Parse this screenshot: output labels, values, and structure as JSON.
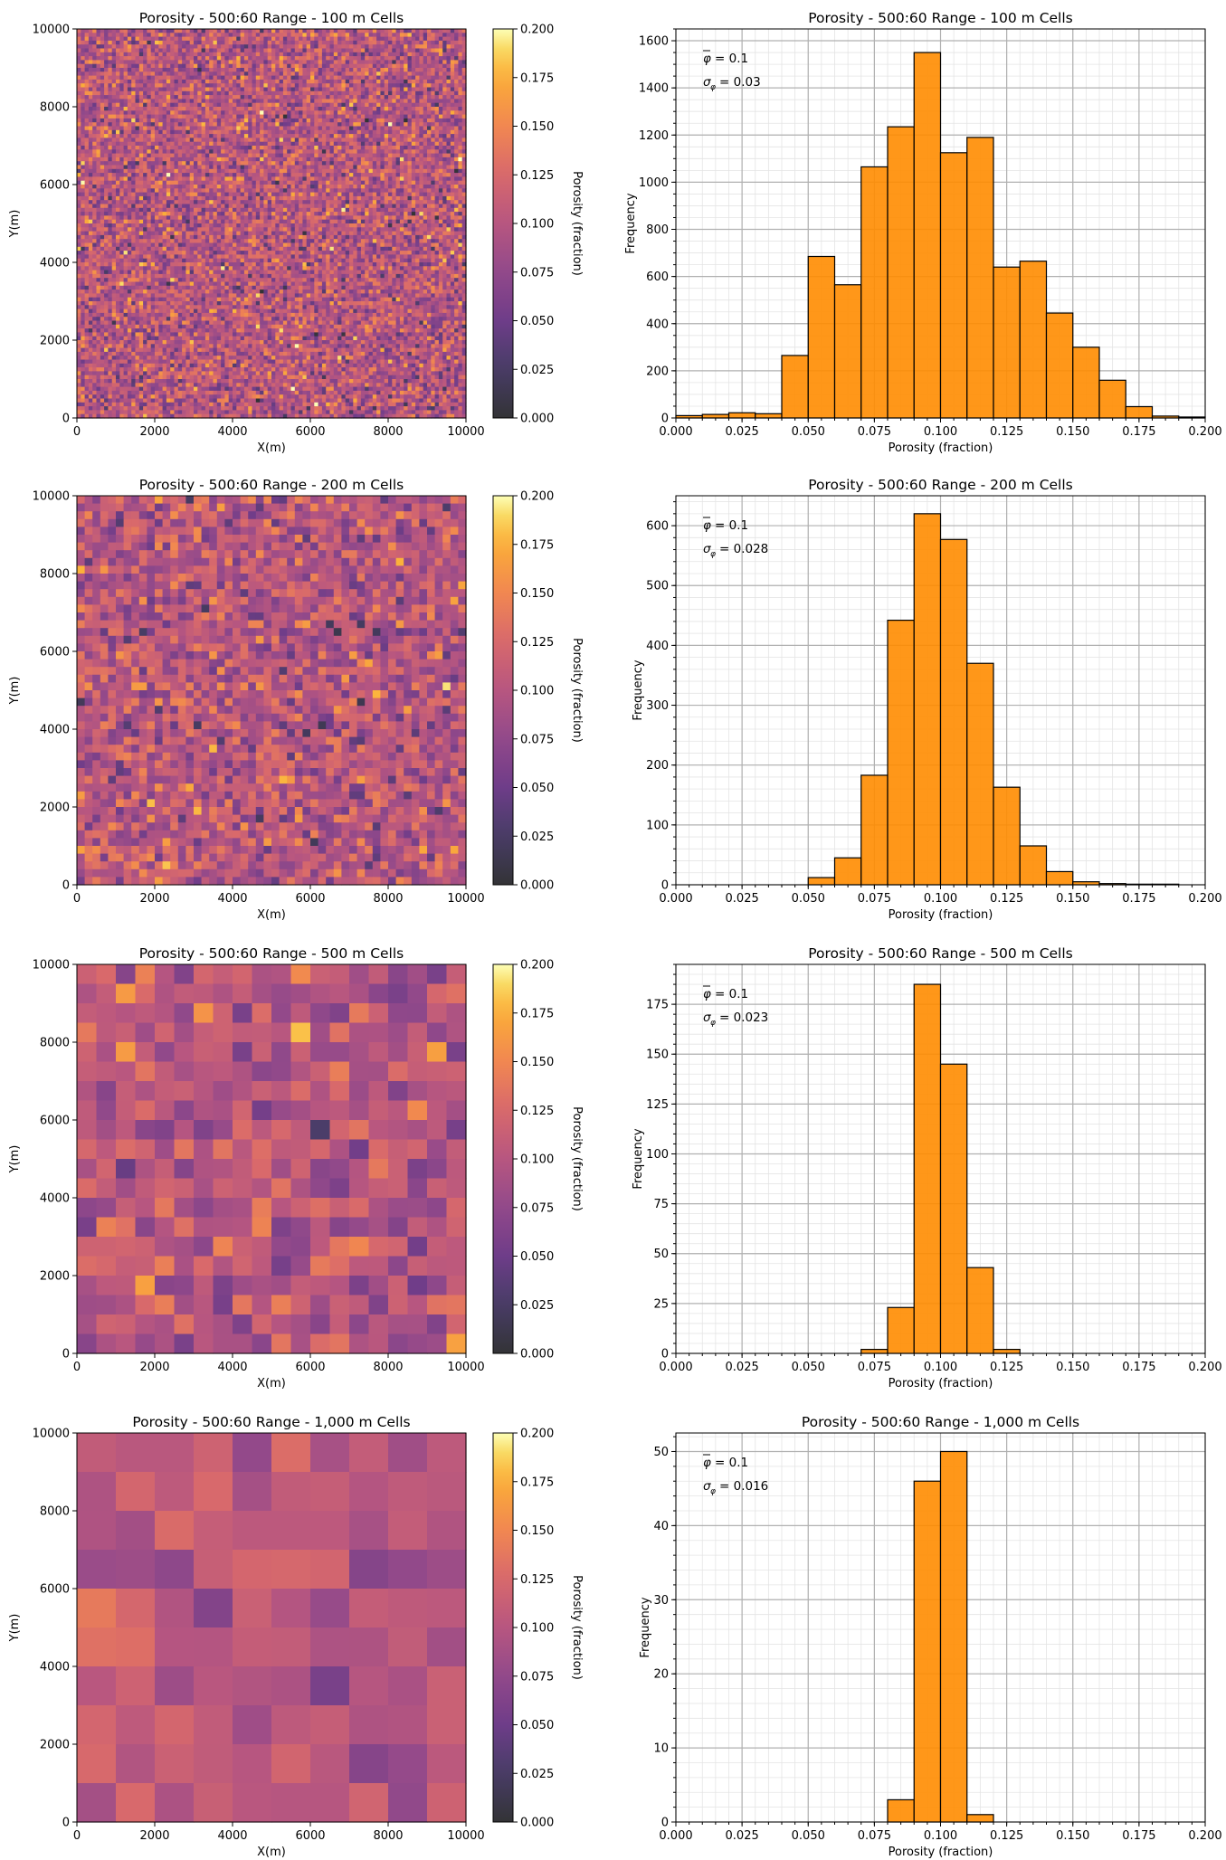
{
  "chart_data": [
    {
      "type": "heatmap",
      "title": "Porosity - 500:60 Range - 100 m Cells",
      "xlabel": "X(m)",
      "ylabel": "Y(m)",
      "xlim": [
        0,
        10000
      ],
      "ylim": [
        0,
        10000
      ],
      "xticks": [
        "0",
        "2000",
        "4000",
        "6000",
        "8000",
        "10000"
      ],
      "yticks": [
        "0",
        "2000",
        "4000",
        "6000",
        "8000",
        "10000"
      ],
      "cell_size_m": 100,
      "grid_cells": 100,
      "mean": 0.1,
      "std": 0.03,
      "colorbar": {
        "label": "Porosity (fraction)",
        "colormap": "inferno",
        "range": [
          0.0,
          0.2
        ],
        "ticks": [
          "0.000",
          "0.025",
          "0.050",
          "0.075",
          "0.100",
          "0.125",
          "0.150",
          "0.175",
          "0.200"
        ]
      }
    },
    {
      "type": "bar",
      "title": "Porosity - 500:60 Range - 100 m Cells",
      "xlabel": "Porosity (fraction)",
      "ylabel": "Frequency",
      "xlim": [
        0,
        0.2
      ],
      "ylim": [
        0,
        1650
      ],
      "xticks": [
        "0.000",
        "0.025",
        "0.050",
        "0.075",
        "0.100",
        "0.125",
        "0.150",
        "0.175",
        "0.200"
      ],
      "yticks": [
        "0",
        "200",
        "400",
        "600",
        "800",
        "1000",
        "1200",
        "1400",
        "1600"
      ],
      "minor_ystep": 50,
      "bin_width": 0.01,
      "bin_starts": [
        0.0,
        0.01,
        0.02,
        0.03,
        0.04,
        0.05,
        0.06,
        0.07,
        0.08,
        0.09,
        0.1,
        0.11,
        0.12,
        0.13,
        0.14,
        0.15,
        0.16,
        0.17,
        0.18,
        0.19
      ],
      "values": [
        10,
        15,
        22,
        18,
        265,
        685,
        565,
        1065,
        1235,
        1550,
        1125,
        1190,
        640,
        665,
        445,
        300,
        160,
        48,
        8,
        4
      ],
      "bar_color": "#ff8c00",
      "mean_label": "= 0.1",
      "std_label": "= 0.03"
    },
    {
      "type": "heatmap",
      "title": "Porosity - 500:60 Range - 200 m Cells",
      "xlabel": "X(m)",
      "ylabel": "Y(m)",
      "xlim": [
        0,
        10000
      ],
      "ylim": [
        0,
        10000
      ],
      "xticks": [
        "0",
        "2000",
        "4000",
        "6000",
        "8000",
        "10000"
      ],
      "yticks": [
        "0",
        "2000",
        "4000",
        "6000",
        "8000",
        "10000"
      ],
      "cell_size_m": 200,
      "grid_cells": 50,
      "mean": 0.1,
      "std": 0.028,
      "colorbar": {
        "label": "Porosity (fraction)",
        "colormap": "inferno",
        "range": [
          0.0,
          0.2
        ],
        "ticks": [
          "0.000",
          "0.025",
          "0.050",
          "0.075",
          "0.100",
          "0.125",
          "0.150",
          "0.175",
          "0.200"
        ]
      }
    },
    {
      "type": "bar",
      "title": "Porosity - 500:60 Range - 200 m Cells",
      "xlabel": "Porosity (fraction)",
      "ylabel": "Frequency",
      "xlim": [
        0,
        0.2
      ],
      "ylim": [
        0,
        650
      ],
      "xticks": [
        "0.000",
        "0.025",
        "0.050",
        "0.075",
        "0.100",
        "0.125",
        "0.150",
        "0.175",
        "0.200"
      ],
      "yticks": [
        "0",
        "100",
        "200",
        "300",
        "400",
        "500",
        "600"
      ],
      "minor_ystep": 20,
      "bin_width": 0.01,
      "bin_starts": [
        0.0,
        0.01,
        0.02,
        0.03,
        0.04,
        0.05,
        0.06,
        0.07,
        0.08,
        0.09,
        0.1,
        0.11,
        0.12,
        0.13,
        0.14,
        0.15,
        0.16,
        0.17,
        0.18,
        0.19
      ],
      "values": [
        0,
        0,
        0,
        0,
        0,
        12,
        45,
        183,
        442,
        620,
        577,
        370,
        163,
        65,
        22,
        5,
        2,
        1,
        1,
        0
      ],
      "bar_color": "#ff8c00",
      "mean_label": "= 0.1",
      "std_label": "= 0.028"
    },
    {
      "type": "heatmap",
      "title": "Porosity - 500:60 Range - 500 m Cells",
      "xlabel": "X(m)",
      "ylabel": "Y(m)",
      "xlim": [
        0,
        10000
      ],
      "ylim": [
        0,
        10000
      ],
      "xticks": [
        "0",
        "2000",
        "4000",
        "6000",
        "8000",
        "10000"
      ],
      "yticks": [
        "0",
        "2000",
        "4000",
        "6000",
        "8000",
        "10000"
      ],
      "cell_size_m": 500,
      "grid_cells": 20,
      "mean": 0.1,
      "std": 0.023,
      "colorbar": {
        "label": "Porosity (fraction)",
        "colormap": "inferno",
        "range": [
          0.0,
          0.2
        ],
        "ticks": [
          "0.000",
          "0.025",
          "0.050",
          "0.075",
          "0.100",
          "0.125",
          "0.150",
          "0.175",
          "0.200"
        ]
      }
    },
    {
      "type": "bar",
      "title": "Porosity - 500:60 Range - 500 m Cells",
      "xlabel": "Porosity (fraction)",
      "ylabel": "Frequency",
      "xlim": [
        0,
        0.2
      ],
      "ylim": [
        0,
        195
      ],
      "xticks": [
        "0.000",
        "0.025",
        "0.050",
        "0.075",
        "0.100",
        "0.125",
        "0.150",
        "0.175",
        "0.200"
      ],
      "yticks": [
        "0",
        "25",
        "50",
        "75",
        "100",
        "125",
        "150",
        "175"
      ],
      "minor_ystep": 5,
      "bin_width": 0.01,
      "bin_starts": [
        0.0,
        0.01,
        0.02,
        0.03,
        0.04,
        0.05,
        0.06,
        0.07,
        0.08,
        0.09,
        0.1,
        0.11,
        0.12,
        0.13,
        0.14,
        0.15,
        0.16,
        0.17,
        0.18,
        0.19
      ],
      "values": [
        0,
        0,
        0,
        0,
        0,
        0,
        0,
        2,
        23,
        185,
        145,
        43,
        2,
        0,
        0,
        0,
        0,
        0,
        0,
        0
      ],
      "bar_color": "#ff8c00",
      "mean_label": "= 0.1",
      "std_label": "= 0.023"
    },
    {
      "type": "heatmap",
      "title": "Porosity - 500:60 Range - 1,000 m Cells",
      "xlabel": "X(m)",
      "ylabel": "Y(m)",
      "xlim": [
        0,
        10000
      ],
      "ylim": [
        0,
        10000
      ],
      "xticks": [
        "0",
        "2000",
        "4000",
        "6000",
        "8000",
        "10000"
      ],
      "yticks": [
        "0",
        "2000",
        "4000",
        "6000",
        "8000",
        "10000"
      ],
      "cell_size_m": 1000,
      "grid_cells": 10,
      "mean": 0.1,
      "std": 0.016,
      "colorbar": {
        "label": "Porosity (fraction)",
        "colormap": "inferno",
        "range": [
          0.0,
          0.2
        ],
        "ticks": [
          "0.000",
          "0.025",
          "0.050",
          "0.075",
          "0.100",
          "0.125",
          "0.150",
          "0.175",
          "0.200"
        ]
      }
    },
    {
      "type": "bar",
      "title": "Porosity - 500:60 Range - 1,000 m Cells",
      "xlabel": "Porosity (fraction)",
      "ylabel": "Frequency",
      "xlim": [
        0,
        0.2
      ],
      "ylim": [
        0,
        52.5
      ],
      "xticks": [
        "0.000",
        "0.025",
        "0.050",
        "0.075",
        "0.100",
        "0.125",
        "0.150",
        "0.175",
        "0.200"
      ],
      "yticks": [
        "0",
        "10",
        "20",
        "30",
        "40",
        "50"
      ],
      "minor_ystep": 2,
      "bin_width": 0.01,
      "bin_starts": [
        0.0,
        0.01,
        0.02,
        0.03,
        0.04,
        0.05,
        0.06,
        0.07,
        0.08,
        0.09,
        0.1,
        0.11,
        0.12,
        0.13,
        0.14,
        0.15,
        0.16,
        0.17,
        0.18,
        0.19
      ],
      "values": [
        0,
        0,
        0,
        0,
        0,
        0,
        0,
        0,
        3,
        46,
        50,
        1,
        0,
        0,
        0,
        0,
        0,
        0,
        0,
        0
      ],
      "bar_color": "#ff8c00",
      "mean_label": "= 0.1",
      "std_label": "= 0.016"
    }
  ]
}
